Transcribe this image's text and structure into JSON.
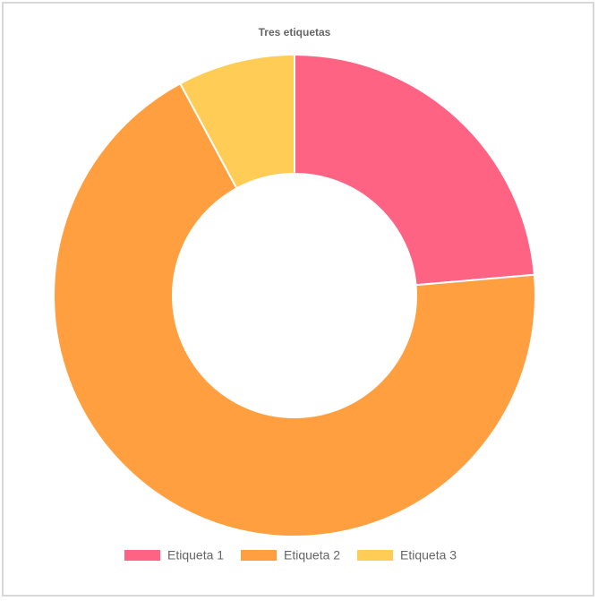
{
  "chart_data": {
    "type": "doughnut",
    "title": "Tres etiquetas",
    "categories": [
      "Etiqueta 1",
      "Etiqueta 2",
      "Etiqueta 3"
    ],
    "values": [
      30,
      87,
      10
    ],
    "colors": [
      "#ff6384",
      "#ff9f40",
      "#ffcd56"
    ],
    "legend": "bottom"
  }
}
